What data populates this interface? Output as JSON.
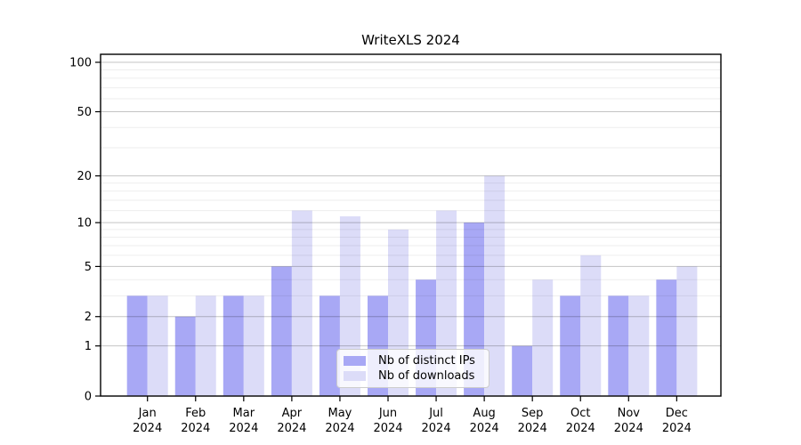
{
  "chart_data": {
    "type": "bar",
    "title": "WriteXLS 2024",
    "categories": [
      "Jan 2024",
      "Feb 2024",
      "Mar 2024",
      "Apr 2024",
      "May 2024",
      "Jun 2024",
      "Jul 2024",
      "Aug 2024",
      "Sep 2024",
      "Oct 2024",
      "Nov 2024",
      "Dec 2024"
    ],
    "series": [
      {
        "name": "Nb of distinct IPs",
        "color": "#a8a8f5",
        "values": [
          3,
          2,
          3,
          5,
          3,
          3,
          4,
          10,
          1,
          3,
          3,
          4
        ]
      },
      {
        "name": "Nb of downloads",
        "color": "#dcdcf8",
        "values": [
          3,
          3,
          3,
          12,
          11,
          9,
          12,
          20,
          4,
          6,
          3,
          5
        ]
      }
    ],
    "xlabel": "",
    "ylabel": "",
    "yscale": "log1p",
    "ylim": [
      0,
      100
    ],
    "yticks": [
      0,
      1,
      2,
      5,
      10,
      20,
      50,
      100
    ],
    "minor_gridlines": [
      3,
      4,
      6,
      7,
      8,
      9,
      12,
      14,
      16,
      18,
      30,
      40,
      60,
      70,
      80,
      90
    ],
    "grid": true,
    "legend_position": "inside-bottom-center",
    "colors": {
      "axis": "#000000",
      "major_grid": "rgba(0,0,0,0.23)",
      "minor_grid": "rgba(0,0,0,0.065)",
      "background": "#ffffff"
    }
  }
}
